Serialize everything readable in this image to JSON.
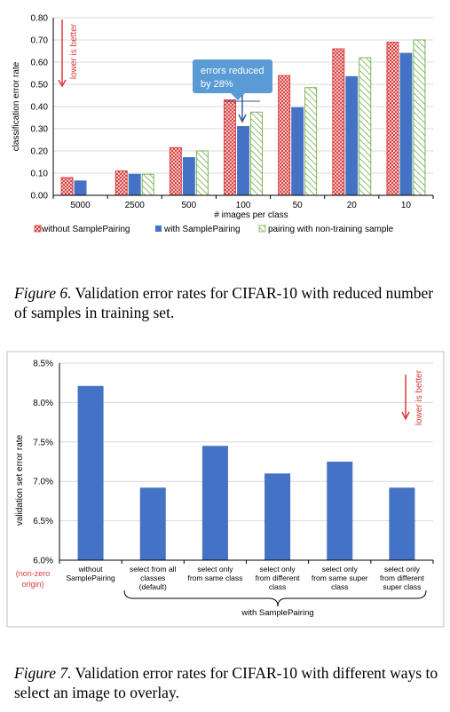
{
  "figure6": {
    "caption_label": "Figure 6.",
    "caption_text": " Validation error rates for CIFAR-10 with reduced number of samples in training set.",
    "annotation": {
      "lower_is_better": "lower is better",
      "callout_line1": "errors reduced",
      "callout_line2": "by 28%"
    },
    "colors": {
      "without": "#d93b3b",
      "with": "#4472c4",
      "nontraining": "#70ad47",
      "callout": "#5b9bd5",
      "arrow_red": "#d93b3b"
    },
    "legend": [
      {
        "label": "without SamplePairing",
        "swatch": "hatch-red"
      },
      {
        "label": "with SamplePairing",
        "swatch": "solid-blue"
      },
      {
        "label": "pairing with non-training sample",
        "swatch": "hatch-green"
      }
    ]
  },
  "figure7": {
    "caption_label": "Figure 7.",
    "caption_text": " Validation error rates for CIFAR-10 with different ways to select an image to overlay.",
    "annotation": {
      "lower_is_better": "lower is better",
      "nonzero_origin_line1": "(non-zero",
      "nonzero_origin_line2": "origin)",
      "group_label": "with SamplePairing"
    },
    "colors": {
      "bar": "#4472c4",
      "red": "#d93b3b"
    }
  },
  "chart_data": [
    {
      "type": "bar",
      "ylabel": "classification error rate",
      "xlabel": "# images per class",
      "ylim": [
        0.0,
        0.8
      ],
      "yticks": [
        "0.00",
        "0.10",
        "0.20",
        "0.30",
        "0.40",
        "0.50",
        "0.60",
        "0.70",
        "0.80"
      ],
      "categories": [
        "5000",
        "2500",
        "500",
        "100",
        "50",
        "20",
        "10"
      ],
      "series": [
        {
          "name": "without SamplePairing",
          "values": [
            0.08,
            0.11,
            0.215,
            0.43,
            0.54,
            0.66,
            0.69
          ]
        },
        {
          "name": "with SamplePairing",
          "values": [
            0.065,
            0.095,
            0.17,
            0.31,
            0.395,
            0.535,
            0.64
          ]
        },
        {
          "name": "pairing with non-training sample",
          "values": [
            null,
            0.095,
            0.2,
            0.375,
            0.485,
            0.62,
            0.7
          ]
        }
      ],
      "legend_position": "bottom",
      "grid": true
    },
    {
      "type": "bar",
      "ylabel": "validation set error rate",
      "ylim": [
        6.0,
        8.5
      ],
      "yticks": [
        "6.0%",
        "6.5%",
        "7.0%",
        "7.5%",
        "8.0%",
        "8.5%"
      ],
      "categories": [
        [
          "without",
          "SamplePairing"
        ],
        [
          "select from all",
          "classes",
          "(default)"
        ],
        [
          "select only",
          "from same class"
        ],
        [
          "select only",
          "from different",
          "class"
        ],
        [
          "select only",
          "from same super",
          "class"
        ],
        [
          "select only",
          "from different",
          "super class"
        ]
      ],
      "values": [
        8.21,
        6.92,
        7.45,
        7.1,
        7.25,
        6.92
      ],
      "grid": true
    }
  ]
}
